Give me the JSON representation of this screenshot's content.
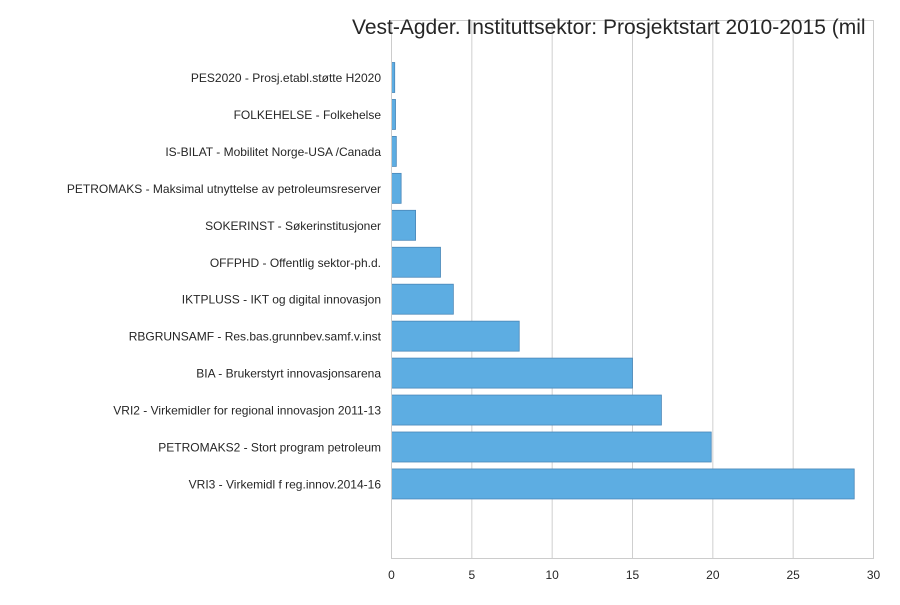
{
  "chart_data": {
    "type": "bar",
    "orientation": "horizontal",
    "title": "Vest-Agder. Instituttsektor: Prosjektstart 2010-2015 (mil",
    "xlabel": "",
    "ylabel": "",
    "xlim": [
      0,
      30
    ],
    "xticks": [
      0,
      5,
      10,
      15,
      20,
      25,
      30
    ],
    "grid": "vertical",
    "bar_color": "#5dade2",
    "categories": [
      "PES2020 - Prosj.etabl.støtte H2020",
      "FOLKEHELSE - Folkehelse",
      "IS-BILAT - Mobilitet Norge-USA /Canada",
      "PETROMAKS - Maksimal utnyttelse av petroleumsreserver",
      "SOKERINST - Søkerinstitusjoner",
      "OFFPHD - Offentlig sektor-ph.d.",
      "IKTPLUSS - IKT og digital innovasjon",
      "RBGRUNSAMF - Res.bas.grunnbev.samf.v.inst",
      "BIA - Brukerstyrt innovasjonsarena",
      "VRI2 - Virkemidler for regional innovasjon 2011-13",
      "PETROMAKS2 - Stort program petroleum",
      "VRI3 - Virkemidl f reg.innov.2014-16"
    ],
    "values": [
      0.2,
      0.25,
      0.3,
      0.6,
      1.5,
      3.05,
      3.85,
      7.95,
      15.0,
      16.8,
      19.9,
      28.8
    ]
  }
}
